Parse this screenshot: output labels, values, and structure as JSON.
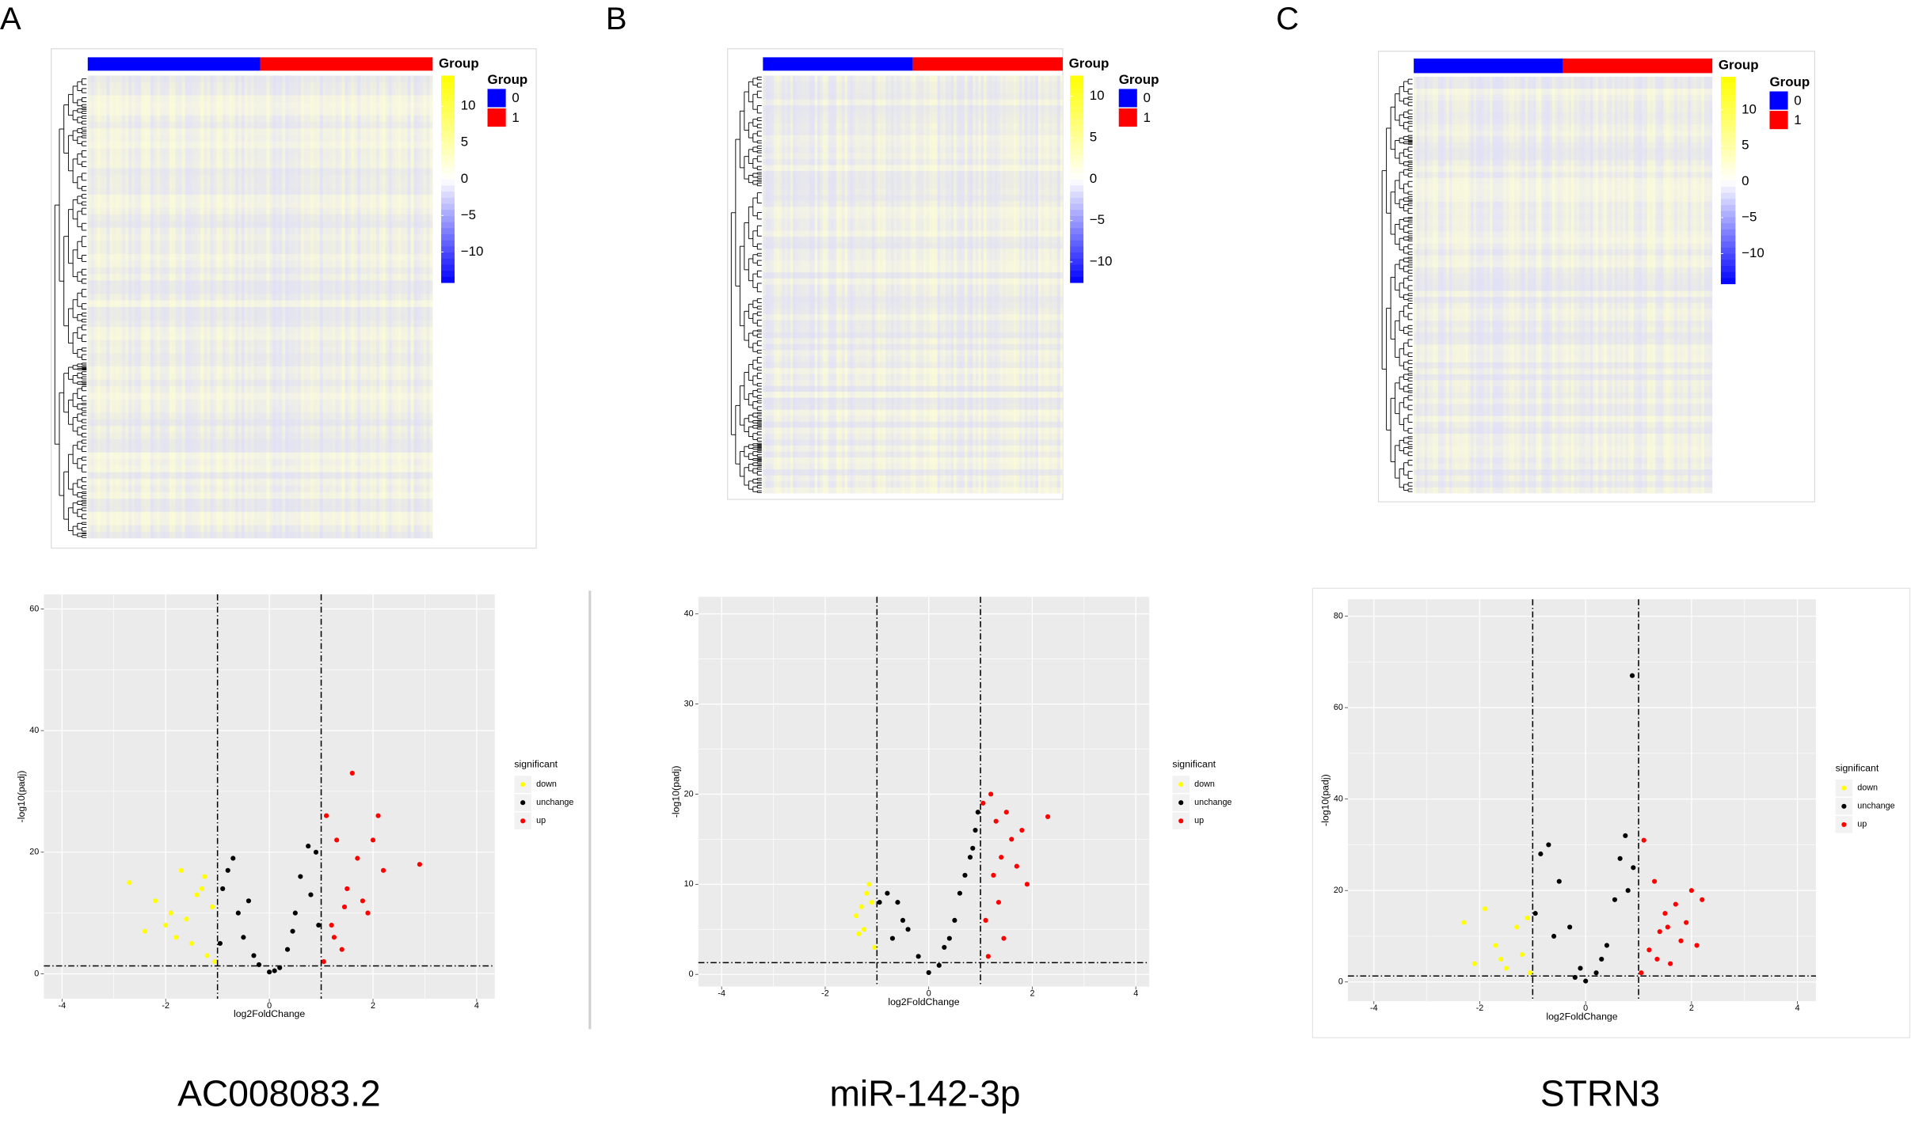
{
  "panel_letters": [
    "A",
    "B",
    "C"
  ],
  "captions": [
    "AC008083.2",
    "miR-142-3p",
    "STRN3"
  ],
  "chart_data": [
    {
      "type": "heatmap",
      "annotation_label": "Group",
      "legend_title": "Group",
      "groups": [
        {
          "name": "0",
          "color": "#0000ff"
        },
        {
          "name": "1",
          "color": "#ff0000"
        }
      ],
      "clim": [
        -14.2,
        14.2
      ],
      "colorbar_ticks": [
        10,
        5,
        0,
        {
          "value": -5,
          "label": "−5"
        },
        {
          "value": -10,
          "label": "−10"
        }
      ]
    },
    {
      "type": "scatter",
      "xlabel": "log2FoldChange",
      "ylabel": "-log10(padj)",
      "legend_title": "significant",
      "xlim": [
        -4.35,
        4.35
      ],
      "ylim": [
        -4.1,
        62.4
      ],
      "xticks": [
        -4,
        -2,
        0,
        2,
        4
      ],
      "yticks": [
        0,
        20,
        40,
        60
      ],
      "vlines": [
        -1,
        1
      ],
      "hline": 1.3,
      "series": [
        {
          "name": "down",
          "color": "#ffff00",
          "x": [
            -2.7,
            -2.4,
            -2.2,
            -1.9,
            -1.7,
            -1.6,
            -1.5,
            -1.3,
            -1.2,
            -1.1,
            -1.8,
            -1.4,
            -2.0,
            -1.05,
            -1.25
          ],
          "y": [
            15,
            7,
            12,
            10,
            17,
            9,
            5,
            14,
            3,
            11,
            6,
            13,
            8,
            2,
            16
          ]
        },
        {
          "name": "unchange",
          "color": "#000000",
          "x": [
            -0.9,
            -0.7,
            -0.6,
            -0.5,
            -0.3,
            -0.2,
            0,
            0.2,
            0.35,
            0.5,
            0.6,
            0.75,
            0.9,
            0.95,
            -0.95,
            -0.4,
            0.1,
            0.45,
            0.8,
            -0.8
          ],
          "y": [
            14,
            19,
            10,
            6,
            3,
            1.5,
            0.3,
            1,
            4,
            10,
            16,
            21,
            20,
            8,
            5,
            12,
            0.5,
            7,
            13,
            17
          ]
        },
        {
          "name": "up",
          "color": "#ff0000",
          "x": [
            1.1,
            1.2,
            1.3,
            1.5,
            1.6,
            1.7,
            1.9,
            2.1,
            2.2,
            2.9,
            1.4,
            1.8,
            2.0,
            1.05,
            1.25,
            1.45
          ],
          "y": [
            26,
            8,
            22,
            14,
            33,
            19,
            10,
            26,
            17,
            18,
            4,
            12,
            22,
            2,
            6,
            11
          ]
        }
      ]
    },
    {
      "type": "heatmap",
      "annotation_label": "Group",
      "legend_title": "Group",
      "groups": [
        {
          "name": "0",
          "color": "#0000ff"
        },
        {
          "name": "1",
          "color": "#ff0000"
        }
      ],
      "clim": [
        -12.5,
        12.5
      ],
      "colorbar_ticks": [
        10,
        5,
        0,
        {
          "value": -5,
          "label": "−5"
        },
        {
          "value": -10,
          "label": "−10"
        }
      ]
    },
    {
      "type": "scatter",
      "xlabel": "log2FoldChange",
      "ylabel": "-log10(padj)",
      "legend_title": "significant",
      "xlim": [
        -4.45,
        4.26
      ],
      "ylim": [
        -1.35,
        41.9
      ],
      "xticks": [
        -4,
        -2,
        0,
        2,
        4
      ],
      "yticks": [
        0,
        10,
        20,
        30,
        40
      ],
      "vlines": [
        -1,
        1
      ],
      "hline": 1.3,
      "series": [
        {
          "name": "down",
          "color": "#ffff00",
          "x": [
            -1.4,
            -1.3,
            -1.2,
            -1.1,
            -1.05,
            -1.25,
            -1.35,
            -1.15
          ],
          "y": [
            6.5,
            7.5,
            9,
            8,
            3,
            5,
            4.5,
            10
          ]
        },
        {
          "name": "unchange",
          "color": "#000000",
          "x": [
            -0.95,
            -0.8,
            -0.6,
            -0.4,
            -0.2,
            0,
            0.2,
            0.4,
            0.5,
            0.6,
            0.7,
            0.8,
            0.9,
            0.95,
            -0.7,
            0.3,
            0.85,
            -0.5
          ],
          "y": [
            8,
            9,
            8,
            5,
            2,
            0.2,
            1,
            4,
            6,
            9,
            11,
            13,
            16,
            18,
            4,
            3,
            14,
            6
          ]
        },
        {
          "name": "up",
          "color": "#ff0000",
          "x": [
            1.05,
            1.1,
            1.2,
            1.3,
            1.4,
            1.5,
            1.6,
            1.7,
            1.8,
            1.9,
            2.3,
            1.15,
            1.35,
            1.45,
            1.25
          ],
          "y": [
            19,
            6,
            20,
            17,
            13,
            18,
            15,
            12,
            16,
            10,
            17.5,
            2,
            8,
            4,
            11
          ]
        }
      ]
    },
    {
      "type": "heatmap",
      "annotation_label": "Group",
      "legend_title": "Group",
      "groups": [
        {
          "name": "0",
          "color": "#0000ff"
        },
        {
          "name": "1",
          "color": "#ff0000"
        }
      ],
      "clim": [
        -14.2,
        14.6
      ],
      "colorbar_ticks": [
        10,
        5,
        0,
        {
          "value": -5,
          "label": "−5"
        },
        {
          "value": -10,
          "label": "−10"
        }
      ]
    },
    {
      "type": "scatter",
      "xlabel": "log2FoldChange",
      "ylabel": "-log10(padj)",
      "legend_title": "significant",
      "xlim": [
        -4.49,
        4.35
      ],
      "ylim": [
        -4.2,
        83.7
      ],
      "xticks": [
        -4,
        -2,
        0,
        2,
        4
      ],
      "yticks": [
        0,
        20,
        40,
        60,
        80
      ],
      "vlines": [
        -1,
        1
      ],
      "hline": 1.3,
      "series": [
        {
          "name": "down",
          "color": "#ffff00",
          "x": [
            -2.3,
            -2.1,
            -1.9,
            -1.7,
            -1.5,
            -1.3,
            -1.2,
            -1.1,
            -1.05,
            -1.6
          ],
          "y": [
            13,
            4,
            16,
            8,
            3,
            12,
            6,
            14,
            2,
            5
          ]
        },
        {
          "name": "unchange",
          "color": "#000000",
          "x": [
            -0.95,
            -0.85,
            -0.7,
            -0.5,
            -0.3,
            -0.1,
            0,
            0.2,
            0.4,
            0.55,
            0.65,
            0.75,
            0.9,
            0.88,
            -0.6,
            0.3,
            -0.2,
            0.8
          ],
          "y": [
            15,
            28,
            30,
            22,
            12,
            3,
            0.2,
            2,
            8,
            18,
            27,
            32,
            25,
            67,
            10,
            5,
            1,
            20
          ]
        },
        {
          "name": "up",
          "color": "#ff0000",
          "x": [
            1.1,
            1.2,
            1.3,
            1.4,
            1.5,
            1.6,
            1.7,
            1.8,
            1.9,
            2.0,
            2.1,
            2.2,
            1.05,
            1.35,
            1.55
          ],
          "y": [
            31,
            7,
            22,
            11,
            15,
            4,
            17,
            9,
            13,
            20,
            8,
            18,
            2,
            5,
            12
          ]
        }
      ]
    }
  ]
}
